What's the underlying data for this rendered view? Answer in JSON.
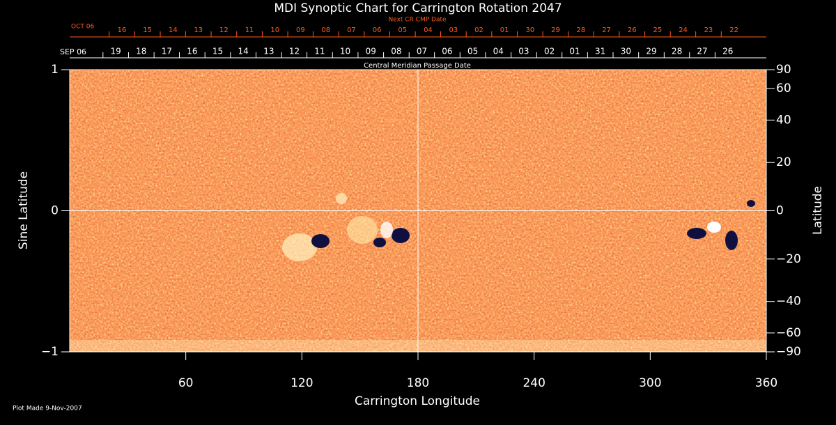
{
  "chart_data": {
    "type": "synoptic-map",
    "title": "MDI Synoptic Chart for Carrington Rotation 2047",
    "xlabel": "Carrington Longitude",
    "ylabel": "Sine Latitude",
    "y2label": "Latitude",
    "footnote": "Plot Made  9-Nov-2007",
    "xlim": [
      0,
      360
    ],
    "xticks": [
      60,
      120,
      180,
      240,
      300,
      360
    ],
    "ylim": [
      -1,
      1
    ],
    "yticks": [
      {
        "value": -1,
        "label": "−1"
      },
      0,
      1
    ],
    "y2scale": "sine",
    "y2lim": [
      -90,
      90
    ],
    "y2ticks": [
      {
        "value": -90,
        "label": "−90"
      },
      {
        "value": -60,
        "label": "−60"
      },
      {
        "value": -40,
        "label": "−40"
      },
      {
        "value": -20,
        "label": "−20"
      },
      0,
      20,
      40,
      60,
      90
    ],
    "center_lines": {
      "x": 180,
      "y": 0
    },
    "cmp_axis": {
      "title": "Central Meridian Passage Date",
      "start_label": "SEP 06",
      "labels": [
        "19",
        "18",
        "17",
        "16",
        "15",
        "14",
        "13",
        "12",
        "11",
        "10",
        "09",
        "08",
        "07",
        "06",
        "05",
        "04",
        "03",
        "02",
        "01",
        "31",
        "30",
        "29",
        "28",
        "27",
        "26"
      ],
      "positions": [
        23.8,
        37.0,
        50.2,
        63.3,
        76.5,
        89.7,
        102.9,
        116.1,
        129.2,
        142.4,
        155.6,
        168.8,
        182.0,
        195.1,
        208.3,
        221.5,
        234.7,
        247.9,
        261.0,
        274.2,
        287.4,
        300.6,
        313.8,
        326.9,
        340.1
      ]
    },
    "next_cmp_axis": {
      "title": "Next CR CMP Date",
      "start_label": "OCT 06",
      "labels": [
        "16",
        "15",
        "14",
        "13",
        "12",
        "11",
        "10",
        "09",
        "08",
        "07",
        "06",
        "05",
        "04",
        "03",
        "02",
        "01",
        "30",
        "29",
        "28",
        "27",
        "26",
        "25",
        "24",
        "23",
        "22"
      ],
      "positions": [
        27.0,
        40.2,
        53.4,
        66.5,
        79.7,
        92.9,
        106.1,
        119.3,
        132.4,
        145.6,
        158.8,
        172.0,
        185.2,
        198.3,
        211.5,
        224.7,
        237.9,
        251.1,
        264.2,
        277.4,
        290.6,
        303.8,
        317.0,
        330.1,
        343.3
      ]
    }
  }
}
